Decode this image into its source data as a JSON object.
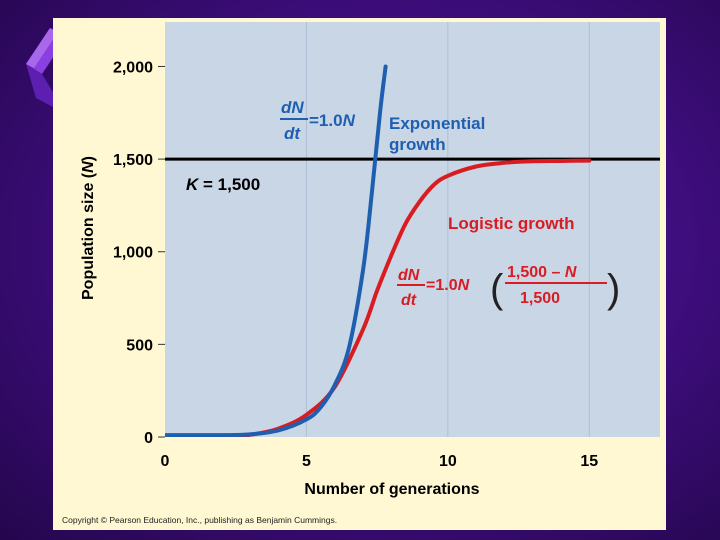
{
  "slide": {
    "background": "#3a0a6e",
    "accent": "#7a2fd0"
  },
  "figure": {
    "panel_color": "#c9d6e6",
    "card_color": "#fff8d2",
    "credit": "Copyright © Pearson Education, Inc., publishing as Benjamin Cummings."
  },
  "chart_data": {
    "type": "line",
    "xlabel": "Number of generations",
    "ylabel_main": "Population size (",
    "ylabel_var": "N",
    "ylabel_close": ")",
    "xlim": [
      0,
      17.5
    ],
    "ylim": [
      0,
      2240
    ],
    "x_ticks": [
      0,
      5,
      10,
      15
    ],
    "x_tick_labels": [
      "0",
      "5",
      "10",
      "15"
    ],
    "y_ticks": [
      0,
      500,
      1000,
      1500,
      2000
    ],
    "y_tick_labels": [
      "0",
      "500",
      "1,000",
      "1,500",
      "2,000"
    ],
    "grid": "vertical",
    "carrying_capacity": {
      "value": 1500,
      "label_var": "K",
      "label_rest": " = 1,500",
      "color": "#000000"
    },
    "series": [
      {
        "name": "Exponential growth",
        "color": "#1f5fb0",
        "x": [
          0,
          2,
          3,
          4,
          5,
          5.5,
          6,
          6.5,
          7,
          7.3,
          7.6,
          7.8
        ],
        "y": [
          10,
          10,
          14,
          35,
          95,
          160,
          280,
          480,
          900,
          1300,
          1750,
          2000
        ]
      },
      {
        "name": "Logistic growth",
        "color": "#d91c22",
        "x": [
          0,
          2,
          3,
          4,
          5,
          6,
          7,
          7.5,
          8,
          8.5,
          9,
          9.5,
          10,
          11,
          12,
          13,
          14,
          15
        ],
        "y": [
          0,
          0,
          12,
          45,
          120,
          270,
          580,
          790,
          980,
          1150,
          1270,
          1360,
          1410,
          1460,
          1480,
          1488,
          1490,
          1492
        ]
      }
    ],
    "annotations": {
      "exp_eq": {
        "dN": "dN",
        "dt": "dt",
        "rhs": "=1.0",
        "rhs_var": "N",
        "color": "#1f5fb0"
      },
      "exp_label": {
        "line1": "Exponential",
        "line2": "growth",
        "color": "#1f5fb0"
      },
      "log_label": {
        "text": "Logistic growth",
        "color": "#d91c22"
      },
      "log_eq": {
        "dN": "dN",
        "dt": "dt",
        "rhs": "=1.0",
        "rhs_var": "N",
        "num_a": "1,500 – ",
        "num_var": "N",
        "den": "1,500",
        "color": "#d91c22"
      }
    }
  }
}
